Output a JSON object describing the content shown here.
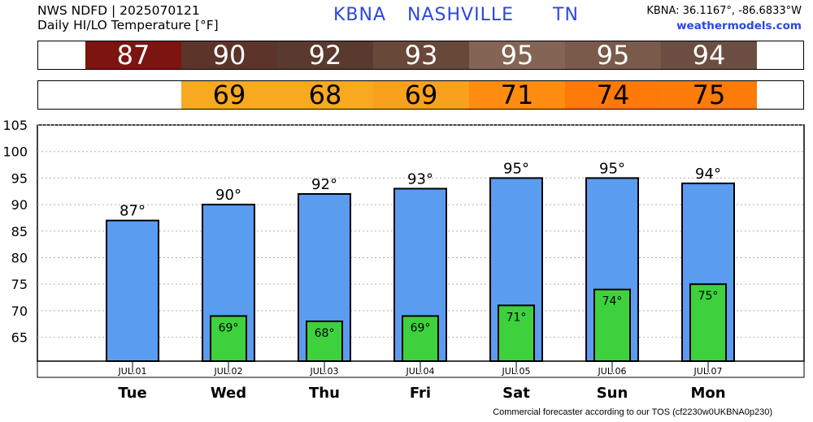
{
  "header": {
    "line1": "NWS NDFD | 2025070121",
    "line2": "Daily HI/LO Temperature [°F]",
    "station_id": "KBNA",
    "station_name": "NASHVILLE",
    "state": "TN",
    "coords": "KBNA: 36.1167°, -86.6833°W",
    "site": "weathermodels.com"
  },
  "footer": "Commercial forecaster according to our TOS (cf2230w0UKBNA0p230)",
  "hi_strip": [
    {
      "value": "87",
      "color": "#7c1410"
    },
    {
      "value": "90",
      "color": "#5c342a"
    },
    {
      "value": "92",
      "color": "#5a3a2e"
    },
    {
      "value": "93",
      "color": "#684838"
    },
    {
      "value": "95",
      "color": "#846454"
    },
    {
      "value": "95",
      "color": "#7a5a4b"
    },
    {
      "value": "94",
      "color": "#6c4f42"
    }
  ],
  "lo_strip": [
    {
      "value": "69",
      "color": "#f9a91f"
    },
    {
      "value": "68",
      "color": "#f9a91f"
    },
    {
      "value": "69",
      "color": "#f9a11d"
    },
    {
      "value": "71",
      "color": "#fd8c10"
    },
    {
      "value": "74",
      "color": "#fd7a08"
    },
    {
      "value": "75",
      "color": "#fd7b08"
    }
  ],
  "colors": {
    "hi_bar": "#5a9cf0",
    "lo_bar": "#3dd23d",
    "grid": "#b0b0b0"
  },
  "chart_data": {
    "type": "bar",
    "categories": [
      "Tue",
      "Wed",
      "Thu",
      "Fri",
      "Sat",
      "Sun",
      "Mon"
    ],
    "dates": [
      "JUL.01",
      "JUL.02",
      "JUL.03",
      "JUL.04",
      "JUL.05",
      "JUL.06",
      "JUL.07"
    ],
    "series": [
      {
        "values": [
          87,
          90,
          92,
          93,
          95,
          95,
          94
        ],
        "labels": [
          "87°",
          "90°",
          "92°",
          "93°",
          "95°",
          "95°",
          "94°"
        ]
      },
      {
        "values": [
          null,
          69,
          68,
          69,
          71,
          74,
          75
        ],
        "labels": [
          "",
          "69°",
          "68°",
          "69°",
          "71°",
          "74°",
          "75°"
        ]
      }
    ],
    "title": "Daily HI/LO Temperature [°F]",
    "xlabel": "",
    "ylabel": "",
    "yticks": [
      "65",
      "70",
      "75",
      "80",
      "85",
      "90",
      "95",
      "100",
      "105"
    ],
    "ylim": [
      60.5,
      105
    ],
    "grid": true
  }
}
